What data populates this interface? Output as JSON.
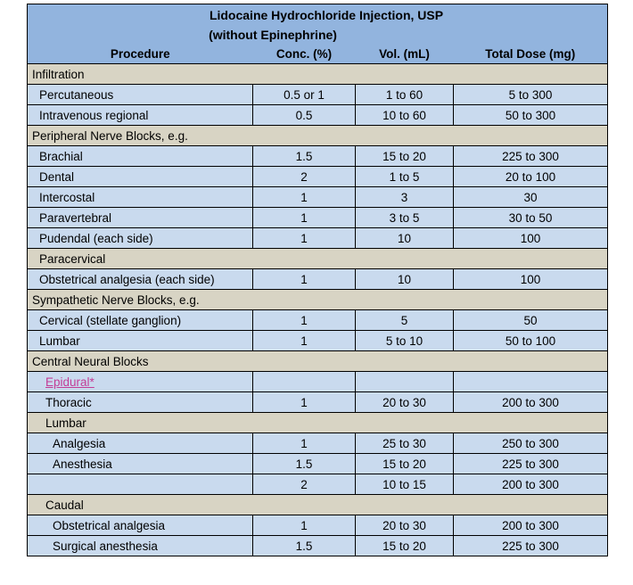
{
  "colors": {
    "header_blue": "#92B4DE",
    "row_blue": "#C9DAEE",
    "section_beige": "#D8D4C4",
    "link_magenta": "#C33C96",
    "border": "#000000"
  },
  "table": {
    "title_line1": "Lidocaine Hydrochloride Injection, USP",
    "title_line2": "(without Epinephrine)",
    "columns": [
      "Procedure",
      "Conc. (%)",
      "Vol. (mL)",
      "Total Dose (mg)"
    ],
    "rows": [
      {
        "type": "section",
        "label": "Infiltration",
        "indent": 0
      },
      {
        "type": "data",
        "procedure": "Percutaneous",
        "conc": "0.5 or 1",
        "vol": "1 to 60",
        "dose": "5 to 300",
        "indent": 1
      },
      {
        "type": "data",
        "procedure": "Intravenous regional",
        "conc": "0.5",
        "vol": "10 to 60",
        "dose": "50 to 300",
        "indent": 1
      },
      {
        "type": "section",
        "label": "Peripheral Nerve Blocks, e.g.",
        "indent": 0
      },
      {
        "type": "data",
        "procedure": "Brachial",
        "conc": "1.5",
        "vol": "15 to 20",
        "dose": "225 to 300",
        "indent": 1
      },
      {
        "type": "data",
        "procedure": "Dental",
        "conc": "2",
        "vol": "1 to 5",
        "dose": "20 to 100",
        "indent": 1
      },
      {
        "type": "data",
        "procedure": "Intercostal",
        "conc": "1",
        "vol": "3",
        "dose": "30",
        "indent": 1
      },
      {
        "type": "data",
        "procedure": "Paravertebral",
        "conc": "1",
        "vol": "3 to 5",
        "dose": "30 to 50",
        "indent": 1
      },
      {
        "type": "data",
        "procedure": "Pudendal (each side)",
        "conc": "1",
        "vol": "10",
        "dose": "100",
        "indent": 1
      },
      {
        "type": "section",
        "label": "Paracervical",
        "indent": 1
      },
      {
        "type": "data",
        "procedure": "Obstetrical analgesia (each side)",
        "conc": "1",
        "vol": "10",
        "dose": "100",
        "indent": 1
      },
      {
        "type": "section",
        "label": "Sympathetic Nerve Blocks, e.g.",
        "indent": 0
      },
      {
        "type": "data",
        "procedure": "Cervical (stellate ganglion)",
        "conc": "1",
        "vol": "5",
        "dose": "50",
        "indent": 1
      },
      {
        "type": "data",
        "procedure": "Lumbar",
        "conc": "1",
        "vol": "5 to 10",
        "dose": "50 to 100",
        "indent": 1
      },
      {
        "type": "section",
        "label": "Central Neural Blocks",
        "indent": 0
      },
      {
        "type": "data",
        "procedure": "Epidural*",
        "conc": "",
        "vol": "",
        "dose": "",
        "indent": 2,
        "link": true
      },
      {
        "type": "data",
        "procedure": "Thoracic",
        "conc": "1",
        "vol": "20 to 30",
        "dose": "200 to 300",
        "indent": 2
      },
      {
        "type": "section",
        "label": "Lumbar",
        "indent": 2
      },
      {
        "type": "data",
        "procedure": "Analgesia",
        "conc": "1",
        "vol": "25 to 30",
        "dose": "250 to 300",
        "indent": 3
      },
      {
        "type": "data",
        "procedure": "Anesthesia",
        "conc": "1.5",
        "vol": "15 to 20",
        "dose": "225 to 300",
        "indent": 3
      },
      {
        "type": "data",
        "procedure": "",
        "conc": "2",
        "vol": "10 to 15",
        "dose": "200 to 300",
        "indent": 0
      },
      {
        "type": "section",
        "label": "Caudal",
        "indent": 2
      },
      {
        "type": "data",
        "procedure": "Obstetrical analgesia",
        "conc": "1",
        "vol": "20 to 30",
        "dose": "200 to 300",
        "indent": 3
      },
      {
        "type": "data",
        "procedure": "Surgical anesthesia",
        "conc": "1.5",
        "vol": "15 to 20",
        "dose": "225 to 300",
        "indent": 3
      }
    ]
  }
}
